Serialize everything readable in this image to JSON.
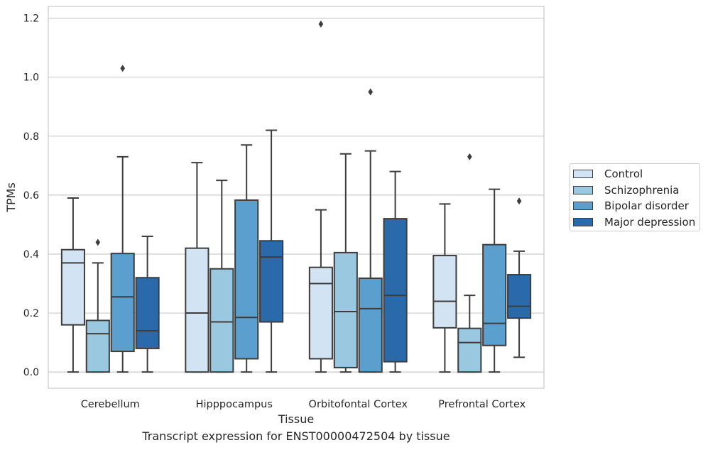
{
  "chart_data": {
    "type": "box",
    "title": "",
    "caption": "Transcript expression for ENST00000472504 by tissue",
    "xlabel": "Tissue",
    "ylabel": "TPMs",
    "ylim": [
      -0.055,
      1.24
    ],
    "yticks": [
      0.0,
      0.2,
      0.4,
      0.6,
      0.8,
      1.0,
      1.2
    ],
    "ytick_labels": [
      "0.0",
      "0.2",
      "0.4",
      "0.6",
      "0.8",
      "1.0",
      "1.2"
    ],
    "grid": "horizontal",
    "legend_position": "right-outside",
    "categories": [
      "Cerebellum",
      "Hipppocampus",
      "Orbitofontal Cortex",
      "Prefrontal Cortex"
    ],
    "series": [
      {
        "name": "Control",
        "color": "#d2e3f3",
        "boxes": [
          {
            "whisker_low": 0.0,
            "q1": 0.16,
            "median": 0.37,
            "q3": 0.415,
            "whisker_high": 0.59,
            "outliers": []
          },
          {
            "whisker_low": 0.0,
            "q1": 0.0,
            "median": 0.2,
            "q3": 0.42,
            "whisker_high": 0.71,
            "outliers": []
          },
          {
            "whisker_low": 0.0,
            "q1": 0.045,
            "median": 0.3,
            "q3": 0.355,
            "whisker_high": 0.55,
            "outliers": [
              1.18
            ]
          },
          {
            "whisker_low": 0.0,
            "q1": 0.15,
            "median": 0.24,
            "q3": 0.395,
            "whisker_high": 0.57,
            "outliers": []
          }
        ]
      },
      {
        "name": "Schizophrenia",
        "color": "#9ac8e0",
        "boxes": [
          {
            "whisker_low": 0.0,
            "q1": 0.0,
            "median": 0.13,
            "q3": 0.175,
            "whisker_high": 0.37,
            "outliers": [
              0.44
            ]
          },
          {
            "whisker_low": 0.0,
            "q1": 0.0,
            "median": 0.17,
            "q3": 0.35,
            "whisker_high": 0.65,
            "outliers": []
          },
          {
            "whisker_low": 0.0,
            "q1": 0.015,
            "median": 0.205,
            "q3": 0.405,
            "whisker_high": 0.74,
            "outliers": []
          },
          {
            "whisker_low": 0.0,
            "q1": 0.0,
            "median": 0.1,
            "q3": 0.148,
            "whisker_high": 0.26,
            "outliers": [
              0.73
            ]
          }
        ]
      },
      {
        "name": "Bipolar disorder",
        "color": "#5a9fcd",
        "boxes": [
          {
            "whisker_low": 0.0,
            "q1": 0.07,
            "median": 0.255,
            "q3": 0.402,
            "whisker_high": 0.73,
            "outliers": [
              1.03
            ]
          },
          {
            "whisker_low": 0.0,
            "q1": 0.045,
            "median": 0.185,
            "q3": 0.583,
            "whisker_high": 0.77,
            "outliers": []
          },
          {
            "whisker_low": 0.0,
            "q1": 0.0,
            "median": 0.215,
            "q3": 0.318,
            "whisker_high": 0.75,
            "outliers": [
              0.95
            ]
          },
          {
            "whisker_low": 0.0,
            "q1": 0.09,
            "median": 0.165,
            "q3": 0.432,
            "whisker_high": 0.62,
            "outliers": []
          }
        ]
      },
      {
        "name": "Major depression",
        "color": "#2a6aaa",
        "boxes": [
          {
            "whisker_low": 0.0,
            "q1": 0.08,
            "median": 0.14,
            "q3": 0.32,
            "whisker_high": 0.46,
            "outliers": []
          },
          {
            "whisker_low": 0.0,
            "q1": 0.17,
            "median": 0.39,
            "q3": 0.445,
            "whisker_high": 0.82,
            "outliers": []
          },
          {
            "whisker_low": 0.0,
            "q1": 0.035,
            "median": 0.26,
            "q3": 0.52,
            "whisker_high": 0.68,
            "outliers": []
          },
          {
            "whisker_low": 0.05,
            "q1": 0.183,
            "median": 0.223,
            "q3": 0.33,
            "whisker_high": 0.41,
            "outliers": [
              0.58
            ]
          }
        ]
      }
    ]
  }
}
